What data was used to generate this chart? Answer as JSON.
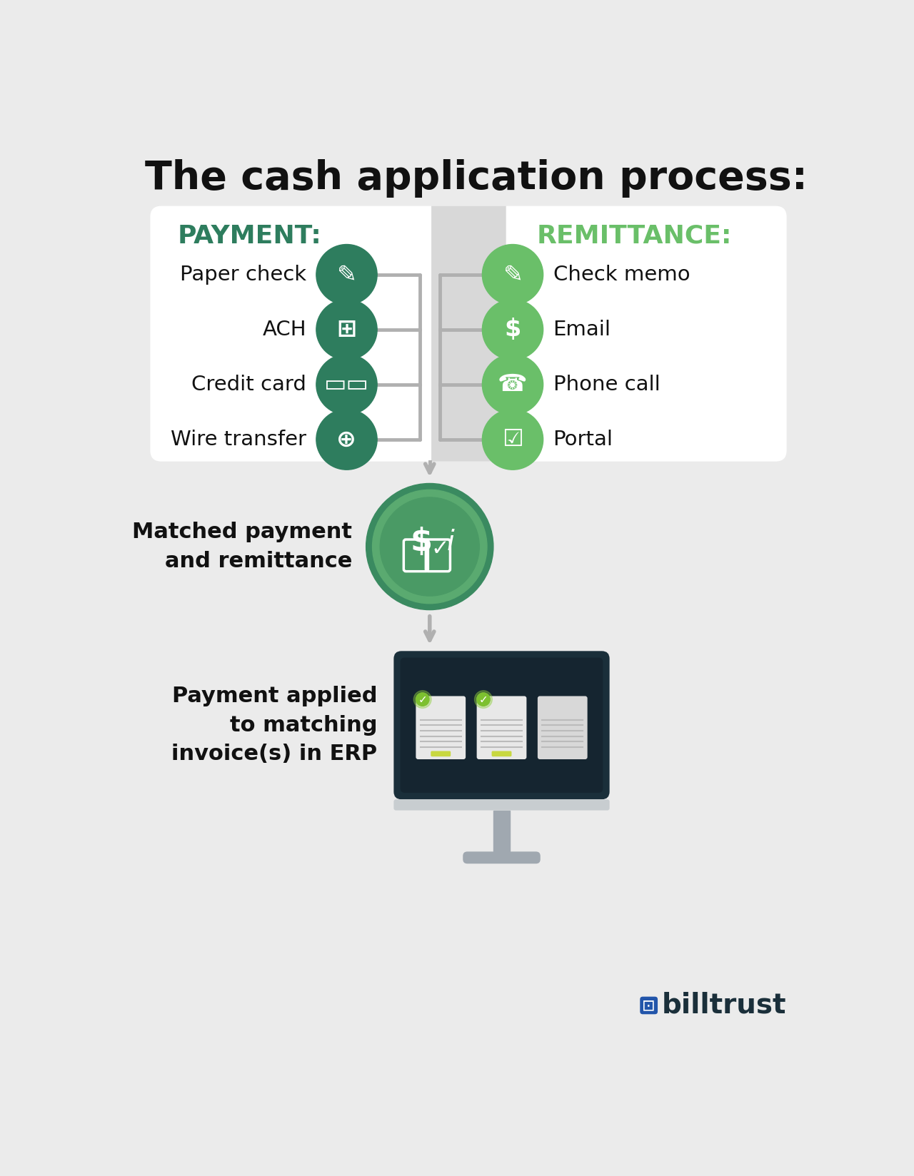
{
  "title": "The cash application process:",
  "bg_color": "#ebebeb",
  "card_bg": "#ffffff",
  "payment_color": "#2e7d5e",
  "remittance_color": "#6abf69",
  "dark_green": "#2e7d5e",
  "light_green": "#6abf69",
  "connector_color": "#b0b0b0",
  "payment_label": "PAYMENT:",
  "remittance_label": "REMITTANCE:",
  "payment_items": [
    "Paper check",
    "ACH",
    "Credit card",
    "Wire transfer"
  ],
  "remittance_items": [
    "Check memo",
    "Email",
    "Phone call",
    "Portal"
  ],
  "matched_label": "Matched payment\nand remittance",
  "applied_label": "Payment applied\nto matching\ninvoice(s) in ERP",
  "monitor_dark": "#1a2f3a",
  "monitor_bezel": "#c8cdd0",
  "stand_color": "#a0a8b0",
  "billtrust_color": "#1a2f3a",
  "billtrust_blue": "#2255aa"
}
